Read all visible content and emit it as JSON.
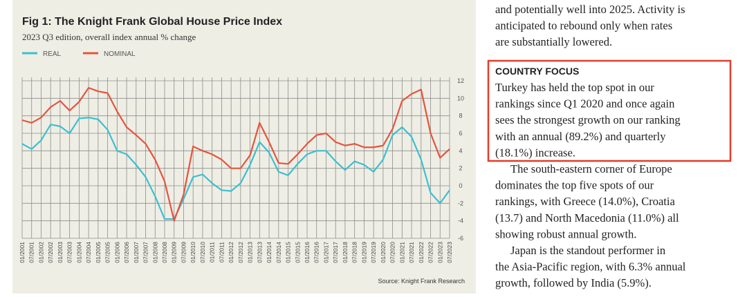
{
  "chart_data": {
    "type": "line",
    "title": "Fig 1: The Knight Frank Global House Price Index",
    "subtitle": "2023 Q3 edition, overall index annual % change",
    "source": "Source: Knight Frank Research",
    "categories": [
      "01/2001",
      "07/2001",
      "01/2002",
      "07/2002",
      "01/2003",
      "07/2003",
      "01/2004",
      "07/2004",
      "01/2005",
      "07/2005",
      "01/2006",
      "07/2006",
      "01/2007",
      "07/2007",
      "01/2008",
      "07/2008",
      "01/2009",
      "07/2009",
      "01/2010",
      "07/2010",
      "01/2011",
      "07/2011",
      "01/2012",
      "07/2012",
      "01/2013",
      "07/2013",
      "01/2014",
      "07/2014",
      "01/2015",
      "07/2015",
      "01/2016",
      "07/2016",
      "01/2017",
      "07/2017",
      "01/2018",
      "07/2018",
      "01/2019",
      "07/2019",
      "01/2020",
      "07/2020",
      "01/2021",
      "07/2021",
      "01/2022",
      "07/2022",
      "01/2023",
      "07/2023"
    ],
    "series": [
      {
        "name": "REAL",
        "color": "#3bbfcf",
        "values": [
          4.8,
          4.2,
          5.2,
          7.0,
          6.8,
          6.0,
          7.7,
          7.8,
          7.6,
          6.4,
          4.0,
          3.6,
          2.4,
          1.0,
          -1.2,
          -3.8,
          -3.8,
          -1.5,
          1.0,
          1.3,
          0.3,
          -0.5,
          -0.6,
          0.3,
          2.4,
          5.0,
          3.8,
          1.6,
          1.2,
          2.5,
          3.6,
          4.0,
          4.0,
          2.8,
          1.8,
          2.8,
          2.4,
          1.6,
          3.0,
          5.8,
          6.7,
          5.6,
          3.0,
          -0.8,
          -2.0,
          -0.5
        ]
      },
      {
        "name": "NOMINAL",
        "color": "#e5533d",
        "values": [
          7.5,
          7.2,
          7.8,
          9.0,
          9.7,
          8.6,
          9.6,
          11.2,
          10.8,
          10.6,
          8.5,
          6.7,
          5.8,
          4.8,
          3.0,
          0.5,
          -4.0,
          -1.0,
          4.5,
          4.0,
          3.6,
          3.0,
          2.0,
          2.0,
          3.5,
          7.2,
          5.0,
          2.6,
          2.5,
          3.6,
          4.8,
          5.8,
          6.0,
          5.0,
          4.6,
          4.8,
          4.4,
          4.4,
          4.6,
          6.5,
          9.7,
          10.5,
          11.0,
          6.0,
          3.2,
          4.2
        ]
      }
    ],
    "ylim": [
      -6,
      12
    ],
    "yticks": [
      -6,
      -4,
      -2,
      0,
      2,
      4,
      6,
      8,
      10,
      12
    ],
    "grid": true
  },
  "article": {
    "intro": [
      "and potentially well into 2025. Activity is",
      "anticipated to rebound only when rates",
      "are substantially lowered."
    ],
    "country_focus": {
      "heading": "COUNTRY FOCUS",
      "lines": [
        "Turkey has held the top spot in our",
        "rankings since Q1 2020 and once again",
        "sees the strongest growth on our ranking",
        "with an annual (89.2%) and quarterly",
        "(18.1%) increase."
      ]
    },
    "paragraphs": [
      [
        "The south-eastern corner of Europe",
        "dominates the top five spots of our",
        "rankings, with Greece (14.0%), Croatia",
        "(13.7) and North Macedonia (11.0%) all",
        "showing robust annual growth."
      ],
      [
        "Japan is the standout performer in",
        "the Asia-Pacific region, with 6.3% annual",
        "growth, followed by India (5.9%)."
      ]
    ]
  }
}
